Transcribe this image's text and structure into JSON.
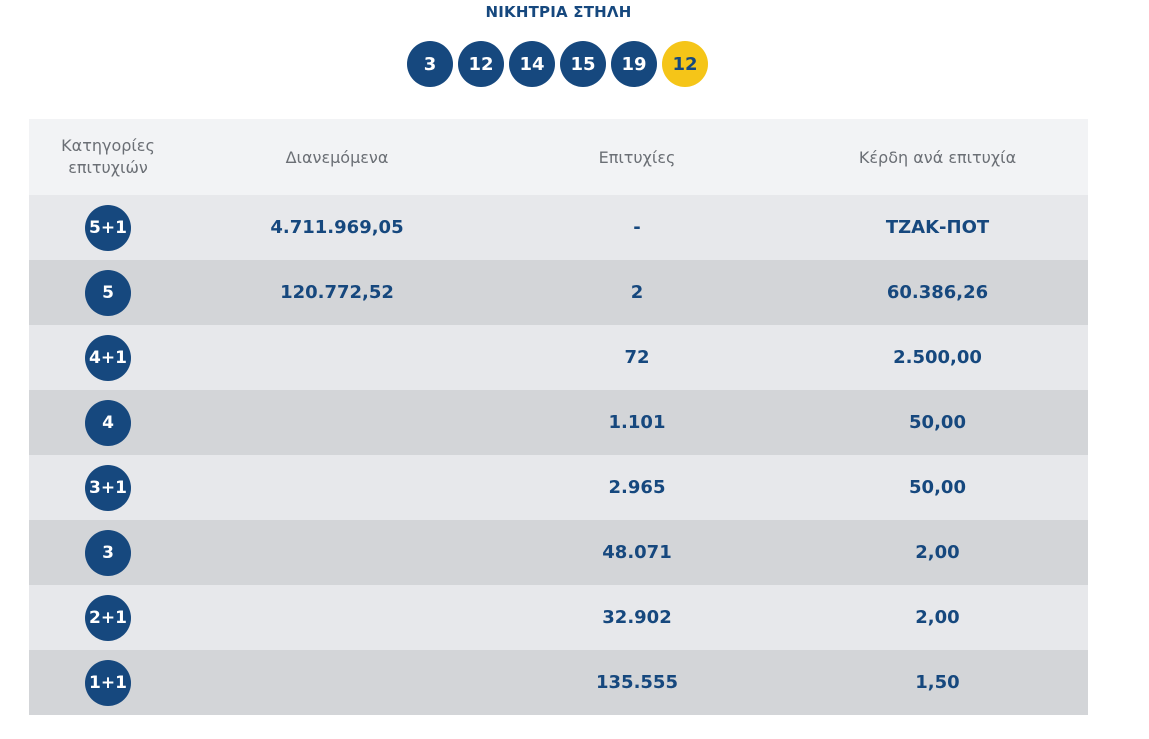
{
  "winning": {
    "title": "ΝΙΚΗΤΡΙΑ ΣΤΗΛΗ",
    "numbers": [
      "3",
      "12",
      "14",
      "15",
      "19"
    ],
    "bonus": "12"
  },
  "table": {
    "headers": {
      "category": "Κατηγορίες επιτυχιών",
      "distributed": "Διανεμόμενα",
      "winners": "Επιτυχίες",
      "prize": "Κέρδη ανά επιτυχία"
    },
    "rows": [
      {
        "category": "5+1",
        "distributed": "4.711.969,05",
        "winners": "-",
        "prize": "ΤΖΑΚ-ΠΟΤ"
      },
      {
        "category": "5",
        "distributed": "120.772,52",
        "winners": "2",
        "prize": "60.386,26"
      },
      {
        "category": "4+1",
        "distributed": "",
        "winners": "72",
        "prize": "2.500,00"
      },
      {
        "category": "4",
        "distributed": "",
        "winners": "1.101",
        "prize": "50,00"
      },
      {
        "category": "3+1",
        "distributed": "",
        "winners": "2.965",
        "prize": "50,00"
      },
      {
        "category": "3",
        "distributed": "",
        "winners": "48.071",
        "prize": "2,00"
      },
      {
        "category": "2+1",
        "distributed": "",
        "winners": "32.902",
        "prize": "2,00"
      },
      {
        "category": "1+1",
        "distributed": "",
        "winners": "135.555",
        "prize": "1,50"
      }
    ]
  },
  "colors": {
    "primary": "#16487e",
    "bonus": "#f5c518",
    "row_light": "#e7e8eb",
    "row_dark": "#d3d5d8",
    "header_bg": "#f2f3f5"
  }
}
